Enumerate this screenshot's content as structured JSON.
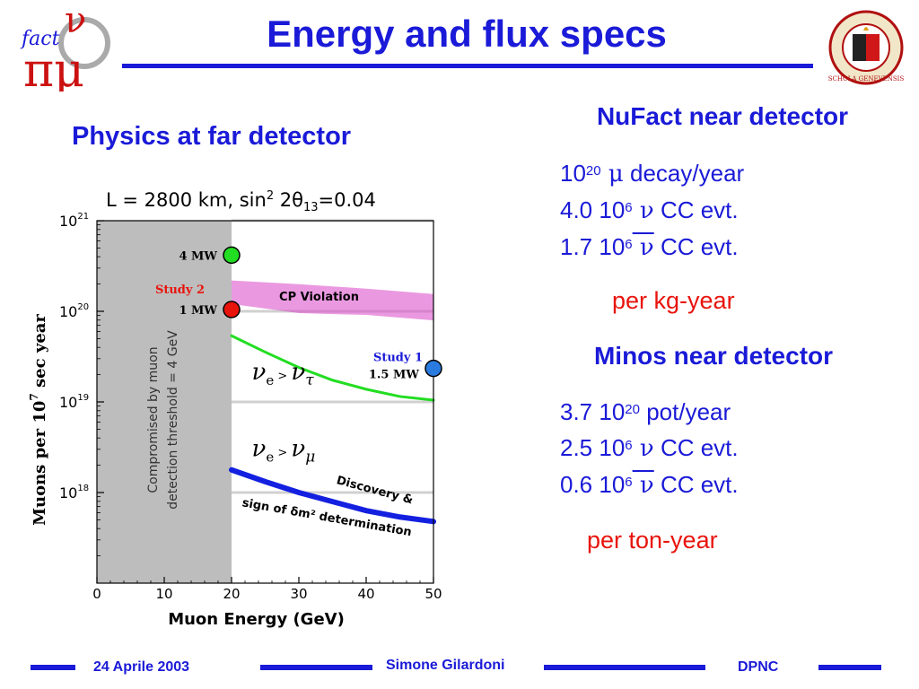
{
  "slide": {
    "title": "Energy and flux specs",
    "left_heading": "Physics at far detector",
    "logo_left": {
      "line1": "fact",
      "sym1": "ν",
      "sym2": "πμ"
    },
    "logo_right": {
      "text": "SCHOLA GENEVENSIS"
    }
  },
  "nufact": {
    "heading": "NuFact near detector",
    "lines": [
      {
        "base": "10",
        "exp": "20",
        "sym": "μ",
        "bar": false,
        "rest": "decay/year"
      },
      {
        "base": "4.0 10",
        "exp": "6",
        "sym": "ν",
        "bar": false,
        "rest": "CC evt."
      },
      {
        "base": "1.7 10",
        "exp": "6",
        "sym": "ν",
        "bar": true,
        "rest": "CC evt."
      }
    ],
    "note": "per kg-year"
  },
  "minos": {
    "heading": "Minos near detector",
    "lines": [
      {
        "base": "3.7 10",
        "exp": "20",
        "sym": "",
        "bar": false,
        "rest": "pot/year"
      },
      {
        "base": "2.5 10",
        "exp": "6",
        "sym": "ν",
        "bar": false,
        "rest": "CC evt."
      },
      {
        "base": "0.6 10",
        "exp": "6",
        "sym": "ν",
        "bar": true,
        "rest": "CC evt."
      }
    ],
    "note": "per ton-year"
  },
  "footer": {
    "date": "24 Aprile 2003",
    "author": "Simone Gilardoni",
    "institute": "DPNC"
  },
  "chart_data": {
    "type": "line",
    "title_parts": {
      "main": "L = 2800 km, sin",
      "exp": "2",
      "theta": " 2θ",
      "sub": "13",
      "tail": "=0.04"
    },
    "xlabel": "Muon Energy  (GeV)",
    "ylabel_main": "Muons per 10",
    "ylabel_exp": "7",
    "ylabel_tail": " sec year",
    "xlim": [
      0,
      50
    ],
    "ylim_log10": [
      17,
      21
    ],
    "x_ticks": [
      0,
      10,
      20,
      30,
      40,
      50
    ],
    "y_ticks": [
      {
        "value": 21,
        "label": "10",
        "exp": "21"
      },
      {
        "value": 20,
        "label": "10",
        "exp": "20"
      },
      {
        "value": 19,
        "label": "10",
        "exp": "19"
      },
      {
        "value": 18,
        "label": "10",
        "exp": "18"
      }
    ],
    "grid": true,
    "shaded_region": {
      "x_from": 0,
      "x_to": 20,
      "color": "#bdbdbd",
      "label_line1": "Compromised by muon",
      "label_line2": "detection threshold = 4 GeV"
    },
    "band": {
      "label": "CP  Violation",
      "x_from": 20,
      "x_to": 50,
      "upper": [
        20.34,
        20.3,
        20.25,
        20.19
      ],
      "lower": [
        20.08,
        19.98,
        19.96,
        19.9
      ],
      "color": "#d946c8"
    },
    "series": [
      {
        "name": "νe > ντ",
        "color": "#22dd22",
        "x": [
          20,
          25,
          30,
          35,
          40,
          45,
          50
        ],
        "log10_y": [
          19.73,
          19.55,
          19.38,
          19.24,
          19.14,
          19.06,
          19.02
        ]
      },
      {
        "name": "νe > νμ",
        "color": "#1420e0",
        "x": [
          20,
          25,
          30,
          35,
          40,
          45,
          50
        ],
        "log10_y": [
          18.25,
          18.12,
          18.0,
          17.9,
          17.8,
          17.73,
          17.68
        ]
      }
    ],
    "series_labels": {
      "tau": {
        "pre": "ν",
        "sub": "e",
        "mid": " > ",
        "post": "ν",
        "post_sub": "τ"
      },
      "mu": {
        "pre": "ν",
        "sub": "e",
        "mid": " > ",
        "post": "ν",
        "post_sub": "μ"
      },
      "mu_note_line1": "Discovery &",
      "mu_note_line2": "sign of δm² determination"
    },
    "points": [
      {
        "label": "4 MW",
        "x": 20,
        "log10_y": 20.62,
        "color": "#22dd22"
      },
      {
        "label": "1 MW",
        "x": 20,
        "log10_y": 20.02,
        "color": "#e8140c"
      },
      {
        "label": "Study 1",
        "sublabel": "1.5 MW",
        "x": 50,
        "log10_y": 19.37,
        "color": "#2a7be0"
      }
    ],
    "study2_label": "Study 2"
  }
}
